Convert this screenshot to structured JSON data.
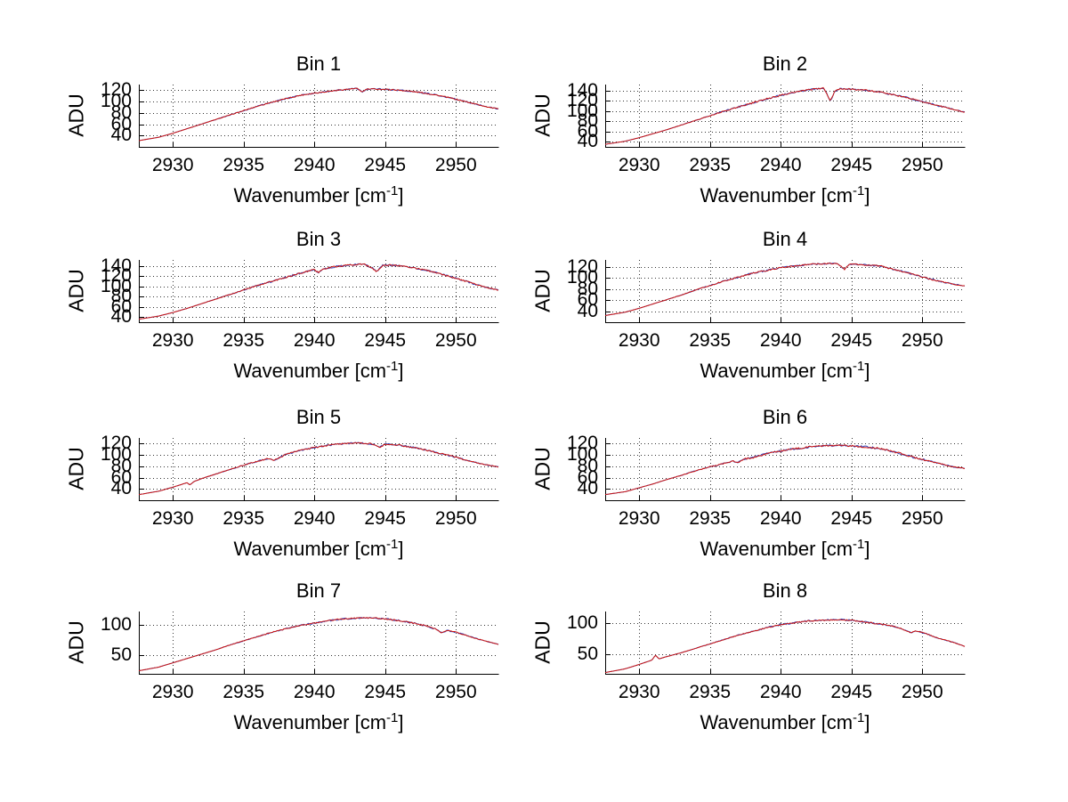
{
  "figure": {
    "background": "#ffffff"
  },
  "labels": {
    "ylabel": "ADU",
    "xlabel_main": "Wavenumber [cm",
    "xlabel_sup": "-1",
    "xlabel_end": "]"
  },
  "axis": {
    "xlim": [
      2927.6,
      2953
    ],
    "x_ticks": [
      2930,
      2935,
      2940,
      2945,
      2950
    ],
    "grid": "dotted",
    "tick_direction": "in"
  },
  "colors": {
    "data_line": "#3344bb",
    "fit_line": "#cc1511",
    "grid": "#333333",
    "axis": "#000000",
    "text": "#000000"
  },
  "chart_data": [
    {
      "type": "line",
      "title": "Bin 1",
      "ylabel": "ADU",
      "ylim": [
        20,
        130
      ],
      "y_ticks": [
        40,
        60,
        80,
        100,
        120
      ],
      "seed": 1,
      "noise": 2.0,
      "anchors": [
        [
          2927.6,
          31
        ],
        [
          2929,
          37
        ],
        [
          2930,
          44
        ],
        [
          2931,
          52
        ],
        [
          2932,
          60
        ],
        [
          2933,
          68
        ],
        [
          2934,
          76
        ],
        [
          2935,
          84
        ],
        [
          2936,
          92
        ],
        [
          2937,
          99
        ],
        [
          2938,
          105
        ],
        [
          2939,
          111
        ],
        [
          2940,
          115
        ],
        [
          2941,
          118
        ],
        [
          2942,
          121
        ],
        [
          2943,
          123
        ],
        [
          2943.4,
          117
        ],
        [
          2943.7,
          122
        ],
        [
          2944.5,
          122
        ],
        [
          2945.5,
          121
        ],
        [
          2946.5,
          119
        ],
        [
          2947.5,
          116
        ],
        [
          2948.5,
          112
        ],
        [
          2949.5,
          107
        ],
        [
          2950.5,
          101
        ],
        [
          2951.5,
          95
        ],
        [
          2952.3,
          90
        ],
        [
          2953,
          87
        ]
      ]
    },
    {
      "type": "line",
      "title": "Bin 2",
      "ylabel": "ADU",
      "ylim": [
        30,
        152
      ],
      "y_ticks": [
        40,
        60,
        80,
        100,
        120,
        140
      ],
      "seed": 2,
      "noise": 2.6,
      "anchors": [
        [
          2927.6,
          35
        ],
        [
          2929,
          41
        ],
        [
          2930,
          48
        ],
        [
          2931,
          56
        ],
        [
          2932,
          64
        ],
        [
          2933,
          73
        ],
        [
          2934,
          82
        ],
        [
          2935,
          91
        ],
        [
          2936,
          100
        ],
        [
          2937,
          108
        ],
        [
          2938,
          116
        ],
        [
          2939,
          124
        ],
        [
          2940,
          131
        ],
        [
          2941,
          137
        ],
        [
          2942,
          142
        ],
        [
          2943,
          145
        ],
        [
          2943.3,
          132
        ],
        [
          2943.5,
          119
        ],
        [
          2943.8,
          138
        ],
        [
          2944.2,
          144
        ],
        [
          2945,
          143
        ],
        [
          2946,
          141
        ],
        [
          2946.8,
          138
        ],
        [
          2947.8,
          133
        ],
        [
          2948.8,
          127
        ],
        [
          2949.8,
          120
        ],
        [
          2950.8,
          113
        ],
        [
          2951.8,
          106
        ],
        [
          2953,
          98
        ]
      ]
    },
    {
      "type": "line",
      "title": "Bin 3",
      "ylabel": "ADU",
      "ylim": [
        30,
        152
      ],
      "y_ticks": [
        40,
        60,
        80,
        100,
        120,
        140
      ],
      "seed": 3,
      "noise": 2.6,
      "anchors": [
        [
          2927.6,
          36
        ],
        [
          2929,
          42
        ],
        [
          2930,
          49
        ],
        [
          2931,
          57
        ],
        [
          2932,
          66
        ],
        [
          2933,
          75
        ],
        [
          2934,
          84
        ],
        [
          2935,
          93
        ],
        [
          2936,
          102
        ],
        [
          2937,
          110
        ],
        [
          2938,
          118
        ],
        [
          2939,
          126
        ],
        [
          2940,
          133
        ],
        [
          2940.3,
          127
        ],
        [
          2940.6,
          134
        ],
        [
          2941.5,
          139
        ],
        [
          2942.5,
          142
        ],
        [
          2943.5,
          144
        ],
        [
          2944.1,
          136
        ],
        [
          2944.4,
          129
        ],
        [
          2944.8,
          141
        ],
        [
          2945.5,
          142
        ],
        [
          2946.5,
          139
        ],
        [
          2947.5,
          134
        ],
        [
          2948.5,
          128
        ],
        [
          2949.5,
          120
        ],
        [
          2950.5,
          112
        ],
        [
          2951.5,
          103
        ],
        [
          2952.3,
          97
        ],
        [
          2953,
          93
        ]
      ]
    },
    {
      "type": "line",
      "title": "Bin 4",
      "ylabel": "ADU",
      "ylim": [
        20,
        132
      ],
      "y_ticks": [
        40,
        60,
        80,
        100,
        120
      ],
      "seed": 4,
      "noise": 2.2,
      "anchors": [
        [
          2927.6,
          32
        ],
        [
          2929,
          38
        ],
        [
          2930,
          45
        ],
        [
          2931,
          53
        ],
        [
          2932,
          61
        ],
        [
          2933,
          69
        ],
        [
          2934,
          78
        ],
        [
          2935,
          86
        ],
        [
          2936,
          94
        ],
        [
          2937,
          101
        ],
        [
          2938,
          108
        ],
        [
          2939,
          113
        ],
        [
          2940,
          118
        ],
        [
          2941,
          121
        ],
        [
          2942,
          124
        ],
        [
          2943,
          125
        ],
        [
          2944,
          126
        ],
        [
          2944.5,
          115
        ],
        [
          2944.8,
          124
        ],
        [
          2945.5,
          124
        ],
        [
          2946.3,
          122
        ],
        [
          2947.2,
          121
        ],
        [
          2947.6,
          117
        ],
        [
          2948.5,
          112
        ],
        [
          2949.5,
          105
        ],
        [
          2950.5,
          98
        ],
        [
          2951.5,
          92
        ],
        [
          2952.3,
          88
        ],
        [
          2953,
          85
        ]
      ]
    },
    {
      "type": "line",
      "title": "Bin 5",
      "ylabel": "ADU",
      "ylim": [
        20,
        130
      ],
      "y_ticks": [
        40,
        60,
        80,
        100,
        120
      ],
      "seed": 5,
      "noise": 2.2,
      "anchors": [
        [
          2927.6,
          30
        ],
        [
          2929,
          36
        ],
        [
          2930,
          43
        ],
        [
          2931,
          51
        ],
        [
          2931.2,
          47
        ],
        [
          2931.5,
          53
        ],
        [
          2932,
          58
        ],
        [
          2933,
          66
        ],
        [
          2934,
          74
        ],
        [
          2935,
          82
        ],
        [
          2936,
          89
        ],
        [
          2936.8,
          94
        ],
        [
          2937.1,
          90
        ],
        [
          2938,
          101
        ],
        [
          2939,
          108
        ],
        [
          2940,
          113
        ],
        [
          2941,
          117
        ],
        [
          2942,
          120
        ],
        [
          2943,
          121
        ],
        [
          2944,
          120
        ],
        [
          2944.6,
          113
        ],
        [
          2945,
          119
        ],
        [
          2946,
          117
        ],
        [
          2947,
          113
        ],
        [
          2948,
          108
        ],
        [
          2949,
          102
        ],
        [
          2950,
          96
        ],
        [
          2951,
          89
        ],
        [
          2952,
          83
        ],
        [
          2953,
          79
        ]
      ]
    },
    {
      "type": "line",
      "title": "Bin 6",
      "ylabel": "ADU",
      "ylim": [
        20,
        130
      ],
      "y_ticks": [
        40,
        60,
        80,
        100,
        120
      ],
      "seed": 6,
      "noise": 2.8,
      "anchors": [
        [
          2927.6,
          30
        ],
        [
          2929,
          35
        ],
        [
          2930,
          42
        ],
        [
          2931,
          49
        ],
        [
          2932,
          57
        ],
        [
          2933,
          64
        ],
        [
          2934,
          72
        ],
        [
          2935,
          79
        ],
        [
          2936,
          85
        ],
        [
          2936.6,
          89
        ],
        [
          2937,
          87
        ],
        [
          2937.4,
          93
        ],
        [
          2938,
          95
        ],
        [
          2939,
          102
        ],
        [
          2940,
          107
        ],
        [
          2941,
          111
        ],
        [
          2942,
          114
        ],
        [
          2943,
          116
        ],
        [
          2944,
          117
        ],
        [
          2945,
          116
        ],
        [
          2946,
          114
        ],
        [
          2946.8,
          112
        ],
        [
          2947.6,
          108
        ],
        [
          2948.4,
          103
        ],
        [
          2949.2,
          97
        ],
        [
          2950,
          92
        ],
        [
          2951,
          86
        ],
        [
          2952,
          80
        ],
        [
          2953,
          76
        ]
      ]
    },
    {
      "type": "line",
      "title": "Bin 7",
      "ylabel": "ADU",
      "ylim": [
        20,
        122
      ],
      "y_ticks": [
        50,
        100
      ],
      "seed": 7,
      "noise": 2.0,
      "anchors": [
        [
          2927.6,
          25
        ],
        [
          2929,
          31
        ],
        [
          2930,
          38
        ],
        [
          2931,
          45
        ],
        [
          2932,
          52
        ],
        [
          2933,
          59
        ],
        [
          2934,
          67
        ],
        [
          2935,
          74
        ],
        [
          2936,
          81
        ],
        [
          2937,
          88
        ],
        [
          2938,
          94
        ],
        [
          2939,
          99
        ],
        [
          2940,
          103
        ],
        [
          2941,
          107
        ],
        [
          2942,
          110
        ],
        [
          2943,
          111
        ],
        [
          2944,
          112
        ],
        [
          2945,
          110
        ],
        [
          2946,
          107
        ],
        [
          2947,
          103
        ],
        [
          2947.8,
          99
        ],
        [
          2948.6,
          93
        ],
        [
          2949,
          87
        ],
        [
          2949.4,
          91
        ],
        [
          2950,
          88
        ],
        [
          2950.6,
          84
        ],
        [
          2951.4,
          78
        ],
        [
          2952.2,
          73
        ],
        [
          2953,
          68
        ]
      ]
    },
    {
      "type": "line",
      "title": "Bin 8",
      "ylabel": "ADU",
      "ylim": [
        18,
        118
      ],
      "y_ticks": [
        50,
        100
      ],
      "seed": 8,
      "noise": 2.0,
      "anchors": [
        [
          2927.6,
          20
        ],
        [
          2929,
          26
        ],
        [
          2930,
          33
        ],
        [
          2930.9,
          40
        ],
        [
          2931.15,
          48
        ],
        [
          2931.4,
          42
        ],
        [
          2932,
          46
        ],
        [
          2933,
          52
        ],
        [
          2934,
          59
        ],
        [
          2935,
          66
        ],
        [
          2936,
          73
        ],
        [
          2937,
          80
        ],
        [
          2938,
          86
        ],
        [
          2939,
          92
        ],
        [
          2940,
          97
        ],
        [
          2941,
          100
        ],
        [
          2942,
          103
        ],
        [
          2943,
          104
        ],
        [
          2944,
          105
        ],
        [
          2945,
          104
        ],
        [
          2946,
          101
        ],
        [
          2947,
          98
        ],
        [
          2948,
          94
        ],
        [
          2948.6,
          90
        ],
        [
          2949.2,
          84
        ],
        [
          2949.6,
          87
        ],
        [
          2950.2,
          83
        ],
        [
          2951,
          76
        ],
        [
          2951.8,
          71
        ],
        [
          2952.4,
          67
        ],
        [
          2953,
          62
        ]
      ]
    }
  ]
}
